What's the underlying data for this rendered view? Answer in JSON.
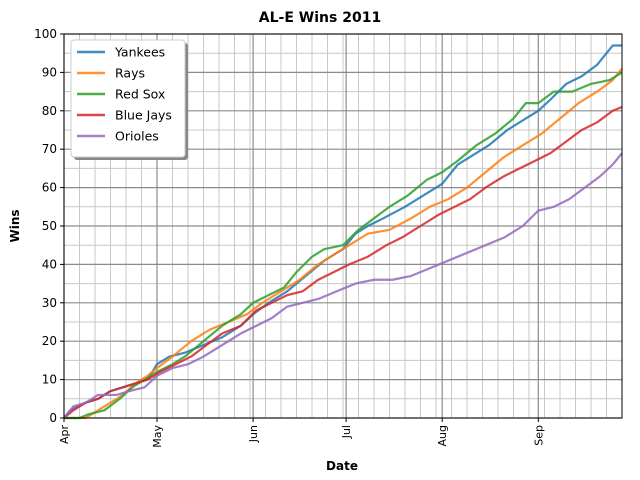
{
  "chart_data": {
    "type": "line",
    "title": "AL-E Wins 2011",
    "xlabel": "Date",
    "ylabel": "Wins",
    "x_axis": "date",
    "xlim": [
      "2011-04-01",
      "2011-09-28"
    ],
    "ylim": [
      0,
      100
    ],
    "yticks": [
      0,
      10,
      20,
      30,
      40,
      50,
      60,
      70,
      80,
      90,
      100
    ],
    "xticks": [
      {
        "label": "Apr",
        "date": "2011-04-01"
      },
      {
        "label": "May",
        "date": "2011-05-01"
      },
      {
        "label": "Jun",
        "date": "2011-06-01"
      },
      {
        "label": "Jul",
        "date": "2011-07-01"
      },
      {
        "label": "Aug",
        "date": "2011-08-01"
      },
      {
        "label": "Sep",
        "date": "2011-09-01"
      }
    ],
    "grid": "major and minor",
    "legend_position": "top-left",
    "series": [
      {
        "name": "Yankees",
        "color": "#1f77b4",
        "points": [
          [
            "2011-04-01",
            0
          ],
          [
            "2011-04-03",
            2
          ],
          [
            "2011-04-08",
            4
          ],
          [
            "2011-04-12",
            5
          ],
          [
            "2011-04-16",
            7
          ],
          [
            "2011-04-20",
            8
          ],
          [
            "2011-04-24",
            9
          ],
          [
            "2011-04-28",
            10
          ],
          [
            "2011-05-01",
            14
          ],
          [
            "2011-05-05",
            16
          ],
          [
            "2011-05-10",
            17
          ],
          [
            "2011-05-16",
            19
          ],
          [
            "2011-05-22",
            21
          ],
          [
            "2011-05-28",
            24
          ],
          [
            "2011-06-01",
            27
          ],
          [
            "2011-06-06",
            30
          ],
          [
            "2011-06-12",
            33
          ],
          [
            "2011-06-18",
            37
          ],
          [
            "2011-06-24",
            41
          ],
          [
            "2011-06-30",
            44
          ],
          [
            "2011-07-04",
            48
          ],
          [
            "2011-07-08",
            50
          ],
          [
            "2011-07-13",
            52
          ],
          [
            "2011-07-20",
            55
          ],
          [
            "2011-07-26",
            58
          ],
          [
            "2011-08-01",
            61
          ],
          [
            "2011-08-06",
            66
          ],
          [
            "2011-08-10",
            68
          ],
          [
            "2011-08-16",
            71
          ],
          [
            "2011-08-22",
            75
          ],
          [
            "2011-08-28",
            78
          ],
          [
            "2011-09-01",
            80
          ],
          [
            "2011-09-05",
            83
          ],
          [
            "2011-09-10",
            87
          ],
          [
            "2011-09-15",
            89
          ],
          [
            "2011-09-20",
            92
          ],
          [
            "2011-09-25",
            97
          ],
          [
            "2011-09-28",
            97
          ]
        ]
      },
      {
        "name": "Rays",
        "color": "#ff7f0e",
        "points": [
          [
            "2011-04-01",
            0
          ],
          [
            "2011-04-08",
            0
          ],
          [
            "2011-04-12",
            2
          ],
          [
            "2011-04-16",
            4
          ],
          [
            "2011-04-20",
            6
          ],
          [
            "2011-04-24",
            9
          ],
          [
            "2011-04-28",
            11
          ],
          [
            "2011-05-01",
            13
          ],
          [
            "2011-05-06",
            16
          ],
          [
            "2011-05-12",
            20
          ],
          [
            "2011-05-18",
            23
          ],
          [
            "2011-05-24",
            25
          ],
          [
            "2011-05-30",
            27
          ],
          [
            "2011-06-04",
            30
          ],
          [
            "2011-06-10",
            33
          ],
          [
            "2011-06-16",
            36
          ],
          [
            "2011-06-22",
            40
          ],
          [
            "2011-06-28",
            43
          ],
          [
            "2011-07-04",
            46
          ],
          [
            "2011-07-08",
            48
          ],
          [
            "2011-07-15",
            49
          ],
          [
            "2011-07-22",
            52
          ],
          [
            "2011-07-28",
            55
          ],
          [
            "2011-08-03",
            57
          ],
          [
            "2011-08-09",
            60
          ],
          [
            "2011-08-15",
            64
          ],
          [
            "2011-08-21",
            68
          ],
          [
            "2011-08-27",
            71
          ],
          [
            "2011-09-02",
            74
          ],
          [
            "2011-09-08",
            78
          ],
          [
            "2011-09-14",
            82
          ],
          [
            "2011-09-20",
            85
          ],
          [
            "2011-09-25",
            88
          ],
          [
            "2011-09-28",
            91
          ]
        ]
      },
      {
        "name": "Red Sox",
        "color": "#2ca02c",
        "points": [
          [
            "2011-04-01",
            0
          ],
          [
            "2011-04-06",
            0
          ],
          [
            "2011-04-09",
            1
          ],
          [
            "2011-04-14",
            2
          ],
          [
            "2011-04-19",
            5
          ],
          [
            "2011-04-23",
            8
          ],
          [
            "2011-04-27",
            10
          ],
          [
            "2011-05-01",
            12
          ],
          [
            "2011-05-06",
            14
          ],
          [
            "2011-05-10",
            16
          ],
          [
            "2011-05-16",
            20
          ],
          [
            "2011-05-22",
            24
          ],
          [
            "2011-05-28",
            27
          ],
          [
            "2011-06-01",
            30
          ],
          [
            "2011-06-06",
            32
          ],
          [
            "2011-06-11",
            34
          ],
          [
            "2011-06-15",
            38
          ],
          [
            "2011-06-20",
            42
          ],
          [
            "2011-06-24",
            44
          ],
          [
            "2011-06-30",
            45
          ],
          [
            "2011-07-05",
            49
          ],
          [
            "2011-07-10",
            52
          ],
          [
            "2011-07-15",
            55
          ],
          [
            "2011-07-21",
            58
          ],
          [
            "2011-07-27",
            62
          ],
          [
            "2011-08-01",
            64
          ],
          [
            "2011-08-06",
            67
          ],
          [
            "2011-08-12",
            71
          ],
          [
            "2011-08-18",
            74
          ],
          [
            "2011-08-24",
            78
          ],
          [
            "2011-08-28",
            82
          ],
          [
            "2011-09-01",
            82
          ],
          [
            "2011-09-06",
            85
          ],
          [
            "2011-09-12",
            85
          ],
          [
            "2011-09-18",
            87
          ],
          [
            "2011-09-24",
            88
          ],
          [
            "2011-09-28",
            90
          ]
        ]
      },
      {
        "name": "Blue Jays",
        "color": "#d62728",
        "points": [
          [
            "2011-04-01",
            0
          ],
          [
            "2011-04-04",
            2
          ],
          [
            "2011-04-08",
            4
          ],
          [
            "2011-04-12",
            5
          ],
          [
            "2011-04-16",
            7
          ],
          [
            "2011-04-20",
            8
          ],
          [
            "2011-04-24",
            9
          ],
          [
            "2011-04-28",
            10
          ],
          [
            "2011-05-02",
            12
          ],
          [
            "2011-05-07",
            14
          ],
          [
            "2011-05-12",
            16
          ],
          [
            "2011-05-17",
            19
          ],
          [
            "2011-05-22",
            22
          ],
          [
            "2011-05-28",
            24
          ],
          [
            "2011-06-02",
            28
          ],
          [
            "2011-06-07",
            30
          ],
          [
            "2011-06-12",
            32
          ],
          [
            "2011-06-17",
            33
          ],
          [
            "2011-06-22",
            36
          ],
          [
            "2011-06-27",
            38
          ],
          [
            "2011-07-02",
            40
          ],
          [
            "2011-07-08",
            42
          ],
          [
            "2011-07-14",
            45
          ],
          [
            "2011-07-19",
            47
          ],
          [
            "2011-07-25",
            50
          ],
          [
            "2011-07-31",
            53
          ],
          [
            "2011-08-05",
            55
          ],
          [
            "2011-08-10",
            57
          ],
          [
            "2011-08-15",
            60
          ],
          [
            "2011-08-21",
            63
          ],
          [
            "2011-08-26",
            65
          ],
          [
            "2011-08-31",
            67
          ],
          [
            "2011-09-05",
            69
          ],
          [
            "2011-09-10",
            72
          ],
          [
            "2011-09-15",
            75
          ],
          [
            "2011-09-20",
            77
          ],
          [
            "2011-09-25",
            80
          ],
          [
            "2011-09-28",
            81
          ]
        ]
      },
      {
        "name": "Orioles",
        "color": "#9467bd",
        "points": [
          [
            "2011-04-01",
            0
          ],
          [
            "2011-04-04",
            3
          ],
          [
            "2011-04-08",
            4
          ],
          [
            "2011-04-12",
            6
          ],
          [
            "2011-04-18",
            6
          ],
          [
            "2011-04-22",
            7
          ],
          [
            "2011-04-27",
            8
          ],
          [
            "2011-05-01",
            11
          ],
          [
            "2011-05-06",
            13
          ],
          [
            "2011-05-11",
            14
          ],
          [
            "2011-05-16",
            16
          ],
          [
            "2011-05-22",
            19
          ],
          [
            "2011-05-28",
            22
          ],
          [
            "2011-06-02",
            24
          ],
          [
            "2011-06-07",
            26
          ],
          [
            "2011-06-12",
            29
          ],
          [
            "2011-06-17",
            30
          ],
          [
            "2011-06-22",
            31
          ],
          [
            "2011-06-28",
            33
          ],
          [
            "2011-07-04",
            35
          ],
          [
            "2011-07-10",
            36
          ],
          [
            "2011-07-16",
            36
          ],
          [
            "2011-07-22",
            37
          ],
          [
            "2011-07-28",
            39
          ],
          [
            "2011-08-03",
            41
          ],
          [
            "2011-08-09",
            43
          ],
          [
            "2011-08-15",
            45
          ],
          [
            "2011-08-21",
            47
          ],
          [
            "2011-08-27",
            50
          ],
          [
            "2011-09-01",
            54
          ],
          [
            "2011-09-06",
            55
          ],
          [
            "2011-09-11",
            57
          ],
          [
            "2011-09-16",
            60
          ],
          [
            "2011-09-21",
            63
          ],
          [
            "2011-09-25",
            66
          ],
          [
            "2011-09-28",
            69
          ]
        ]
      }
    ]
  }
}
